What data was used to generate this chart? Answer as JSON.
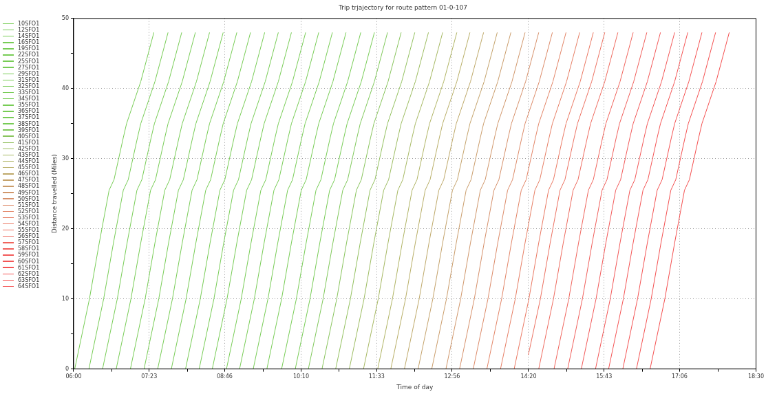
{
  "chart_data": {
    "type": "line",
    "title": "Trip trjajectory for route pattern 01-0-107",
    "xlabel": "Time of day",
    "ylabel": "Distance travelled (Miles)",
    "xlim": [
      6,
      18.5
    ],
    "xticks": [
      {
        "value": 6,
        "label": "06:00"
      },
      {
        "value": 6.6944,
        "label": null
      },
      {
        "value": 7.3833,
        "label": "07:23"
      },
      {
        "value": 8.0833,
        "label": null
      },
      {
        "value": 8.7667,
        "label": "08:46"
      },
      {
        "value": 9.4722,
        "label": null
      },
      {
        "value": 10.1667,
        "label": "10:10"
      },
      {
        "value": 10.8611,
        "label": null
      },
      {
        "value": 11.55,
        "label": "11:33"
      },
      {
        "value": 12.25,
        "label": null
      },
      {
        "value": 12.9333,
        "label": "12:56"
      },
      {
        "value": 13.6389,
        "label": null
      },
      {
        "value": 14.3333,
        "label": "14:20"
      },
      {
        "value": 15.0278,
        "label": null
      },
      {
        "value": 15.7167,
        "label": "15:43"
      },
      {
        "value": 16.4167,
        "label": null
      },
      {
        "value": 17.1,
        "label": "17:06"
      },
      {
        "value": 17.8056,
        "label": null
      },
      {
        "value": 18.5,
        "label": "18:30"
      }
    ],
    "ylim": [
      0,
      50
    ],
    "yticks": [
      0,
      {
        "value": 5,
        "label": null
      },
      10,
      {
        "value": 15,
        "label": null
      },
      20,
      {
        "value": 25,
        "label": null
      },
      30,
      {
        "value": 35,
        "label": null
      },
      40,
      {
        "value": 45,
        "label": null
      },
      50
    ],
    "grid": true,
    "legend": "top left",
    "series": [
      {
        "name": "10SFO1",
        "color": "#77cc55",
        "x": [
          6.02,
          6.29,
          6.47,
          6.65,
          6.74,
          6.91,
          6.97,
          7.23,
          7.47
        ],
        "values": [
          0,
          10,
          18,
          25.5,
          27,
          33,
          35,
          41,
          48
        ]
      },
      {
        "name": "12SFO1",
        "color": "#77cc55",
        "x": [
          6.28,
          6.55,
          6.73,
          6.91,
          7.0,
          7.17,
          7.23,
          7.49,
          7.73
        ],
        "values": [
          0,
          10,
          18,
          25.5,
          27,
          33,
          35,
          41,
          48
        ]
      },
      {
        "name": "14SFO1",
        "color": "#77cc55",
        "x": [
          6.53,
          6.8,
          6.98,
          7.16,
          7.25,
          7.42,
          7.48,
          7.74,
          7.98
        ],
        "values": [
          0,
          10,
          18,
          25.5,
          27,
          33,
          35,
          41,
          48
        ]
      },
      {
        "name": "16SFO1",
        "color": "#77cc55",
        "x": [
          6.78,
          7.05,
          7.23,
          7.41,
          7.5,
          7.67,
          7.73,
          7.99,
          8.23
        ],
        "values": [
          0,
          10,
          18,
          25.5,
          27,
          33,
          35,
          41,
          48
        ]
      },
      {
        "name": "19SFO1",
        "color": "#77cc55",
        "x": [
          7.04,
          7.31,
          7.49,
          7.67,
          7.76,
          7.93,
          7.99,
          8.25,
          8.49
        ],
        "values": [
          0,
          10,
          18,
          25.5,
          27,
          33,
          35,
          41,
          48
        ]
      },
      {
        "name": "22SFO1",
        "color": "#77cc55",
        "x": [
          7.29,
          7.56,
          7.74,
          7.92,
          8.01,
          8.18,
          8.24,
          8.5,
          8.74
        ],
        "values": [
          0,
          10,
          18,
          25.5,
          27,
          33,
          35,
          41,
          48
        ]
      },
      {
        "name": "25SFO1",
        "color": "#77cc55",
        "x": [
          7.54,
          7.81,
          7.99,
          8.17,
          8.26,
          8.43,
          8.49,
          8.75,
          8.99
        ],
        "values": [
          0,
          10,
          18,
          25.5,
          27,
          33,
          35,
          41,
          48
        ]
      },
      {
        "name": "27SFO1",
        "color": "#77cc55",
        "x": [
          7.79,
          8.06,
          8.24,
          8.42,
          8.51,
          8.68,
          8.74,
          9.0,
          9.24
        ],
        "values": [
          0,
          10,
          18,
          25.5,
          27,
          33,
          35,
          41,
          48
        ]
      },
      {
        "name": "29SFO1",
        "color": "#77cc55",
        "x": [
          8.05,
          8.32,
          8.5,
          8.68,
          8.77,
          8.94,
          9.0,
          9.26,
          9.5
        ],
        "values": [
          0,
          10,
          18,
          25.5,
          27,
          33,
          35,
          41,
          48
        ]
      },
      {
        "name": "31SFO1",
        "color": "#77cc55",
        "x": [
          8.3,
          8.57,
          8.75,
          8.93,
          9.02,
          9.19,
          9.25,
          9.51,
          9.75
        ],
        "values": [
          0,
          10,
          18,
          25.5,
          27,
          33,
          35,
          41,
          48
        ]
      },
      {
        "name": "32SFO1",
        "color": "#77cc55",
        "x": [
          8.54,
          8.81,
          8.99,
          9.17,
          9.26,
          9.43,
          9.49,
          9.75,
          9.99
        ],
        "values": [
          0,
          10,
          18,
          25.5,
          27,
          33,
          35,
          41,
          48
        ]
      },
      {
        "name": "33SFO1",
        "color": "#77cc55",
        "x": [
          8.8,
          9.07,
          9.25,
          9.43,
          9.52,
          9.69,
          9.75,
          10.01,
          10.25
        ],
        "values": [
          0,
          10,
          18,
          25.5,
          27,
          33,
          35,
          41,
          48
        ]
      },
      {
        "name": "34SFO1",
        "color": "#77cc55",
        "x": [
          9.04,
          9.31,
          9.49,
          9.67,
          9.76,
          9.93,
          9.99,
          10.25,
          10.49
        ],
        "values": [
          0,
          10,
          18,
          25.5,
          27,
          33,
          35,
          41,
          48
        ]
      },
      {
        "name": "35SFO1",
        "color": "#77cc55",
        "x": [
          9.29,
          9.56,
          9.74,
          9.92,
          10.01,
          10.18,
          10.24,
          10.5,
          10.74
        ],
        "values": [
          0,
          10,
          18,
          25.5,
          27,
          33,
          35,
          41,
          48
        ]
      },
      {
        "name": "36SFO1",
        "color": "#77cc55",
        "x": [
          9.54,
          9.81,
          9.99,
          10.17,
          10.26,
          10.43,
          10.49,
          10.75,
          10.99
        ],
        "values": [
          0,
          10,
          18,
          25.5,
          27,
          33,
          35,
          41,
          48
        ]
      },
      {
        "name": "37SFO1",
        "color": "#77cc55",
        "x": [
          9.81,
          10.08,
          10.26,
          10.44,
          10.53,
          10.7,
          10.76,
          11.02,
          11.26
        ],
        "values": [
          0,
          10,
          18,
          25.5,
          27,
          33,
          35,
          41,
          48
        ]
      },
      {
        "name": "38SFO1",
        "color": "#77cc55",
        "x": [
          10.06,
          10.33,
          10.51,
          10.69,
          10.78,
          10.95,
          11.01,
          11.27,
          11.51
        ],
        "values": [
          0,
          10,
          18,
          25.5,
          27,
          33,
          35,
          41,
          48
        ]
      },
      {
        "name": "39SFO1",
        "color": "#7fc85a",
        "x": [
          10.3,
          10.57,
          10.75,
          10.93,
          11.02,
          11.19,
          11.25,
          11.51,
          11.75
        ],
        "values": [
          0,
          10,
          18,
          25.5,
          27,
          33,
          35,
          41,
          48
        ]
      },
      {
        "name": "40SFO1",
        "color": "#88c45c",
        "x": [
          10.55,
          10.82,
          11.0,
          11.18,
          11.27,
          11.44,
          11.5,
          11.76,
          12.0
        ],
        "values": [
          0,
          10,
          18,
          25.5,
          27,
          33,
          35,
          41,
          48
        ]
      },
      {
        "name": "41SFO1",
        "color": "#92c05e",
        "x": [
          10.8,
          11.07,
          11.25,
          11.43,
          11.52,
          11.69,
          11.75,
          12.01,
          12.25
        ],
        "values": [
          0,
          10,
          18,
          25.5,
          27,
          33,
          35,
          41,
          48
        ]
      },
      {
        "name": "42SFO1",
        "color": "#9cbc60",
        "x": [
          11.05,
          11.32,
          11.5,
          11.68,
          11.77,
          11.94,
          12.0,
          12.26,
          12.5
        ],
        "values": [
          0,
          10,
          18,
          25.5,
          27,
          33,
          35,
          41,
          48
        ]
      },
      {
        "name": "43SFO1",
        "color": "#a6b862",
        "x": [
          11.31,
          11.58,
          11.76,
          11.94,
          12.03,
          12.2,
          12.26,
          12.52,
          12.76
        ],
        "values": [
          0,
          10,
          18,
          25.5,
          27,
          33,
          35,
          41,
          48
        ]
      },
      {
        "name": "44SFO1",
        "color": "#b0b464",
        "x": [
          11.57,
          11.84,
          12.02,
          12.2,
          12.29,
          12.46,
          12.52,
          12.78,
          13.02
        ],
        "values": [
          0,
          10,
          18,
          25.5,
          27,
          33,
          35,
          41,
          48
        ]
      },
      {
        "name": "45SFO1",
        "color": "#b8ae66",
        "x": [
          11.81,
          12.08,
          12.26,
          12.44,
          12.53,
          12.7,
          12.76,
          13.02,
          13.26
        ],
        "values": [
          0,
          10,
          18,
          25.5,
          27,
          33,
          35,
          41,
          48
        ]
      },
      {
        "name": "46SFO1",
        "color": "#bea868",
        "x": [
          12.06,
          12.33,
          12.51,
          12.69,
          12.78,
          12.95,
          13.01,
          13.27,
          13.51
        ],
        "values": [
          0,
          10,
          18,
          25.5,
          27,
          33,
          35,
          41,
          48
        ]
      },
      {
        "name": "47SFO1",
        "color": "#c4a26a",
        "x": [
          12.31,
          12.58,
          12.76,
          12.94,
          13.03,
          13.2,
          13.26,
          13.52,
          13.76
        ],
        "values": [
          0,
          10,
          18,
          25.5,
          27,
          33,
          35,
          41,
          48
        ]
      },
      {
        "name": "48SFO1",
        "color": "#ca9c6a",
        "x": [
          12.56,
          12.83,
          13.01,
          13.19,
          13.28,
          13.45,
          13.51,
          13.77,
          14.01
        ],
        "values": [
          0,
          10,
          18,
          25.5,
          27,
          33,
          35,
          41,
          48
        ]
      },
      {
        "name": "49SFO1",
        "color": "#d0966a",
        "x": [
          12.82,
          13.09,
          13.27,
          13.45,
          13.54,
          13.71,
          13.77,
          14.03,
          14.27
        ],
        "values": [
          0,
          10,
          18,
          25.5,
          27,
          33,
          35,
          41,
          48
        ]
      },
      {
        "name": "50SFO1",
        "color": "#d6906a",
        "x": [
          13.07,
          13.34,
          13.52,
          13.7,
          13.79,
          13.96,
          14.02,
          14.28,
          14.52
        ],
        "values": [
          0,
          10,
          18,
          25.5,
          27,
          33,
          35,
          41,
          48
        ]
      },
      {
        "name": "51SFO1",
        "color": "#dc8a68",
        "x": [
          13.32,
          13.59,
          13.77,
          13.95,
          14.04,
          14.21,
          14.27,
          14.53,
          14.77
        ],
        "values": [
          0,
          10,
          18,
          25.5,
          27,
          33,
          35,
          41,
          48
        ]
      },
      {
        "name": "52SFO1",
        "color": "#e28466",
        "x": [
          13.57,
          13.84,
          14.02,
          14.2,
          14.29,
          14.46,
          14.52,
          14.78,
          15.02
        ],
        "values": [
          0,
          10,
          18,
          25.5,
          27,
          33,
          35,
          41,
          48
        ]
      },
      {
        "name": "53SFO1",
        "color": "#e67e64",
        "x": [
          13.82,
          14.09,
          14.27,
          14.45,
          14.54,
          14.71,
          14.77,
          15.03,
          15.27
        ],
        "values": [
          0,
          10,
          18,
          25.5,
          27,
          33,
          35,
          41,
          48
        ]
      },
      {
        "name": "54SFO1",
        "color": "#ea7862",
        "x": [
          14.07,
          14.34,
          14.52,
          14.7,
          14.79,
          14.96,
          15.02,
          15.28,
          15.52
        ],
        "values": [
          0,
          10,
          18,
          25.5,
          27,
          33,
          35,
          41,
          48
        ]
      },
      {
        "name": "55SFO1",
        "color": "#ec7060",
        "x": [
          14.33,
          14.55,
          14.73,
          14.91,
          15.0,
          15.17,
          15.23,
          15.49,
          15.73
        ],
        "values": [
          2,
          10,
          18,
          25.5,
          27,
          33,
          35,
          41,
          48
        ]
      },
      {
        "name": "56SFO1",
        "color": "#ee6a5e",
        "x": [
          14.52,
          14.79,
          14.97,
          15.15,
          15.24,
          15.41,
          15.47,
          15.73,
          15.97
        ],
        "values": [
          0,
          10,
          18,
          25.5,
          27,
          33,
          35,
          41,
          48
        ]
      },
      {
        "name": "57SFO1",
        "color": "#f0645c",
        "x": [
          14.8,
          15.07,
          15.25,
          15.43,
          15.52,
          15.69,
          15.75,
          16.01,
          16.25
        ],
        "values": [
          0,
          10,
          18,
          25.5,
          27,
          33,
          35,
          41,
          48
        ]
      },
      {
        "name": "58SFO1",
        "color": "#f05e5a",
        "x": [
          15.05,
          15.32,
          15.5,
          15.68,
          15.77,
          15.94,
          16.0,
          16.26,
          16.5
        ],
        "values": [
          0,
          10,
          18,
          25.5,
          27,
          33,
          35,
          41,
          48
        ]
      },
      {
        "name": "59SFO1",
        "color": "#f25858",
        "x": [
          15.3,
          15.57,
          15.75,
          15.93,
          16.02,
          16.19,
          16.25,
          16.51,
          16.75
        ],
        "values": [
          0,
          10,
          18,
          25.5,
          27,
          33,
          35,
          41,
          48
        ]
      },
      {
        "name": "60SFO1",
        "color": "#f25656",
        "x": [
          15.56,
          15.83,
          16.01,
          16.19,
          16.28,
          16.45,
          16.51,
          16.77,
          17.01
        ],
        "values": [
          0,
          10,
          18,
          25.5,
          27,
          33,
          35,
          41,
          48
        ]
      },
      {
        "name": "61SFO1",
        "color": "#f45454",
        "x": [
          15.8,
          16.07,
          16.25,
          16.43,
          16.52,
          16.69,
          16.75,
          17.01,
          17.25
        ],
        "values": [
          0,
          10,
          18,
          25.5,
          27,
          33,
          35,
          41,
          48
        ]
      },
      {
        "name": "62SFO1",
        "color": "#f45252",
        "x": [
          16.06,
          16.33,
          16.51,
          16.69,
          16.78,
          16.95,
          17.01,
          17.27,
          17.51
        ],
        "values": [
          0,
          10,
          18,
          25.5,
          27,
          33,
          35,
          41,
          48
        ]
      },
      {
        "name": "63SFO1",
        "color": "#f45050",
        "x": [
          16.31,
          16.58,
          16.76,
          16.94,
          17.03,
          17.2,
          17.26,
          17.52,
          17.76
        ],
        "values": [
          0,
          10,
          18,
          25.5,
          27,
          33,
          35,
          41,
          48
        ]
      },
      {
        "name": "64SFO1",
        "color": "#f44e4e",
        "x": [
          16.56,
          16.83,
          17.01,
          17.19,
          17.28,
          17.45,
          17.51,
          17.77,
          18.01
        ],
        "values": [
          0,
          10,
          18,
          25.5,
          27,
          33,
          35,
          41,
          48
        ]
      }
    ]
  }
}
